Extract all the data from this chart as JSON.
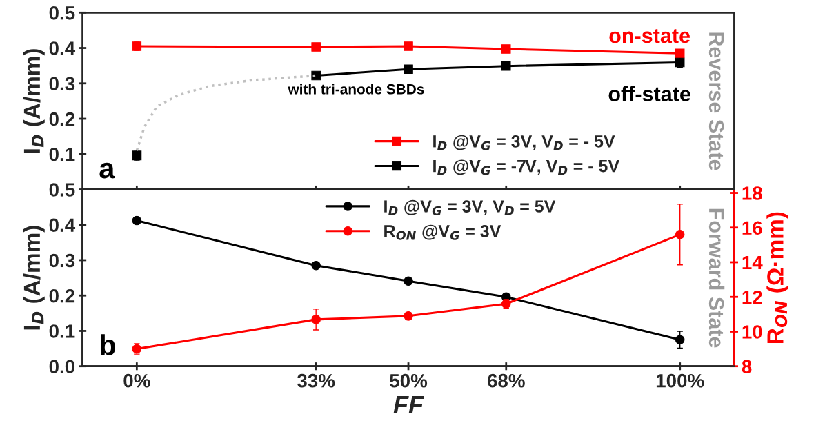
{
  "chart_data": [
    {
      "type": "line",
      "ylabel": "I$_{D}$ (A/mm)",
      "xlim": [
        -10,
        110
      ],
      "ylim": [
        0,
        0.5
      ],
      "yticks": [
        0.1,
        0.2,
        0.3,
        0.4,
        0.5
      ],
      "tick_labels": "y",
      "grid": false,
      "legend": "bottom right",
      "marker": "square",
      "series": [
        {
          "name": "I$_{D}$ @V$_{G}$ = 3V, V$_{D}$ = - 5V",
          "color": "#ff0000",
          "x": [
            0,
            33,
            50,
            68,
            100
          ],
          "values": [
            0.405,
            0.403,
            0.405,
            0.397,
            0.385
          ],
          "errors": [
            0.012,
            0.008,
            0.008,
            0.008,
            0.01
          ]
        },
        {
          "name": "I$_{D}$ @V$_{G}$ = -7V, V$_{D}$ = - 5V",
          "color": "#000000",
          "x": [
            33,
            50,
            68,
            100
          ],
          "values": [
            0.322,
            0.34,
            0.349,
            0.359
          ],
          "errors": [
            0.005,
            0.006,
            0.01,
            0.013
          ]
        },
        {
          "type": "scatter",
          "color": "#000000",
          "x": [
            0
          ],
          "values": [
            0.096
          ],
          "errors": [
            0.015
          ]
        },
        {
          "color": "#c0c0c0",
          "marker": "none",
          "line_style": "dotted",
          "x": [
            0,
            1.4,
            3.7,
            7.7,
            13.3,
            21.3,
            33
          ],
          "values": [
            0.11,
            0.177,
            0.235,
            0.267,
            0.292,
            0.309,
            0.322
          ]
        }
      ],
      "annotations": [
        "on-state",
        "off-state",
        "with tri-anode SBDs",
        "a",
        "Reverse State"
      ]
    },
    {
      "type": "line",
      "xlabel": "FF",
      "ylabel": "I$_{D}$ (A/mm)",
      "y2label": "R$_{ON}$ (Ω·mm)",
      "xlim": [
        -10,
        110
      ],
      "ylim": [
        0,
        0.5
      ],
      "y2lim": [
        8,
        18.2
      ],
      "xticks": [
        {
          "value": 0,
          "label": "0%"
        },
        {
          "value": 33,
          "label": "33%"
        },
        {
          "value": 50,
          "label": "50%"
        },
        {
          "value": 68,
          "label": "68%"
        },
        {
          "value": 100,
          "label": "100%"
        }
      ],
      "yticks": [
        {
          "value": 0,
          "label": "0.0"
        },
        0.1,
        0.2,
        0.3,
        0.4,
        0.5
      ],
      "y2ticks": [
        8,
        10,
        12,
        14,
        16,
        18
      ],
      "grid": false,
      "legend": "top",
      "marker": "circle",
      "series": [
        {
          "name": "I$_{D}$ @V$_{G}$ = 3V, V$_{D}$ = 5V",
          "color": "#000000",
          "x": [
            0,
            33,
            50,
            68,
            100
          ],
          "values": [
            0.412,
            0.285,
            0.241,
            0.196,
            0.075
          ],
          "errors": [
            0.006,
            0.006,
            0.006,
            0.006,
            0.024
          ]
        },
        {
          "name": "R$_{ON}$ @V$_{G}$ = 3V",
          "axis": "y2",
          "color": "#ff0000",
          "x": [
            0,
            33,
            50,
            68,
            100
          ],
          "values": [
            9.0,
            10.7,
            10.9,
            11.6,
            15.6
          ],
          "errors": [
            0.3,
            0.6,
            0.2,
            0.25,
            1.75
          ]
        }
      ],
      "annotations": [
        "b",
        "Forward State"
      ]
    }
  ]
}
